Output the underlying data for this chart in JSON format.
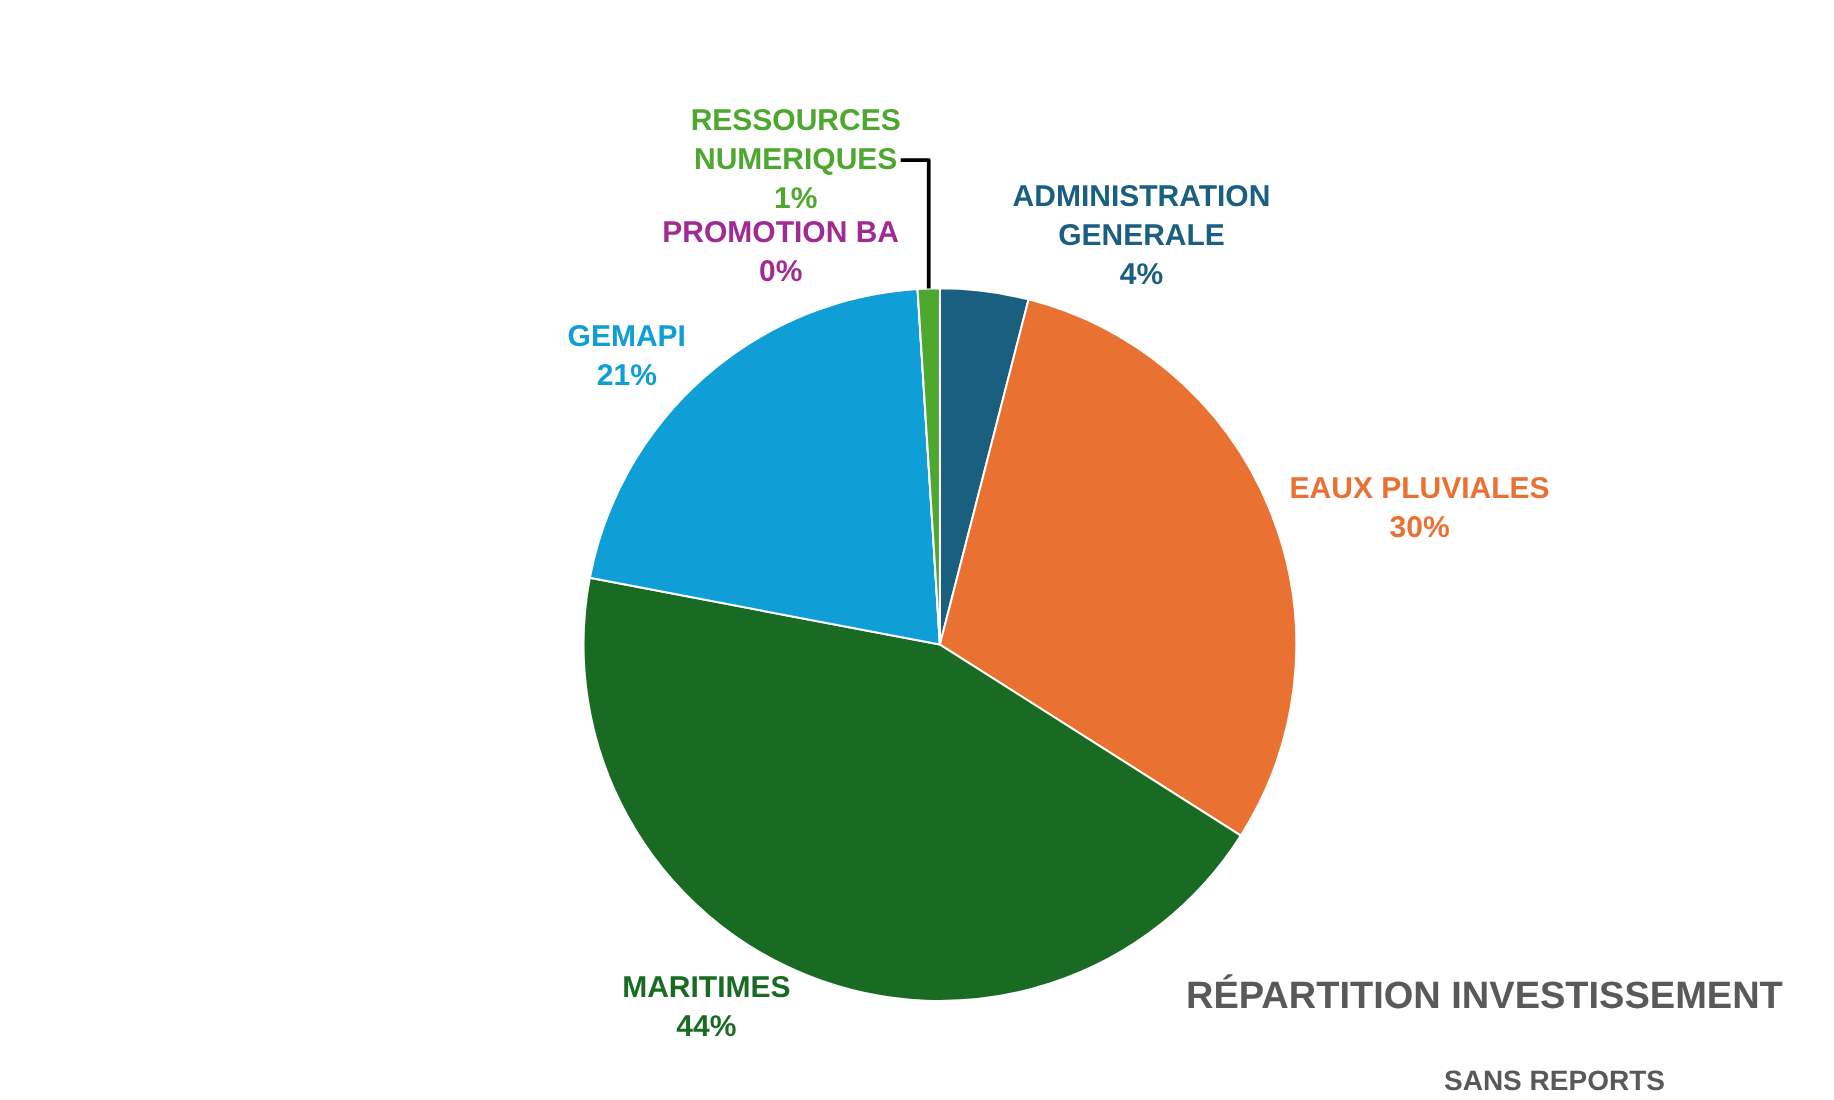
{
  "chart_data": {
    "type": "pie",
    "title": "RÉPARTITION INVESTISSEMENT",
    "subtitle": "SANS REPORTS",
    "categories": [
      "ADMINISTRATION GENERALE",
      "EAUX PLUVIALES",
      "MARITIMES",
      "GEMAPI",
      "PROMOTION BA",
      "RESSOURCES NUMERIQUES"
    ],
    "values": [
      4,
      30,
      44,
      21,
      0,
      1
    ],
    "value_labels": [
      "4%",
      "30%",
      "44%",
      "21%",
      "0%",
      "1%"
    ],
    "colors": [
      "#1a5e80",
      "#e97132",
      "#196b24",
      "#0f9ed5",
      "#a02b93",
      "#4ea72e"
    ],
    "legend": false
  }
}
